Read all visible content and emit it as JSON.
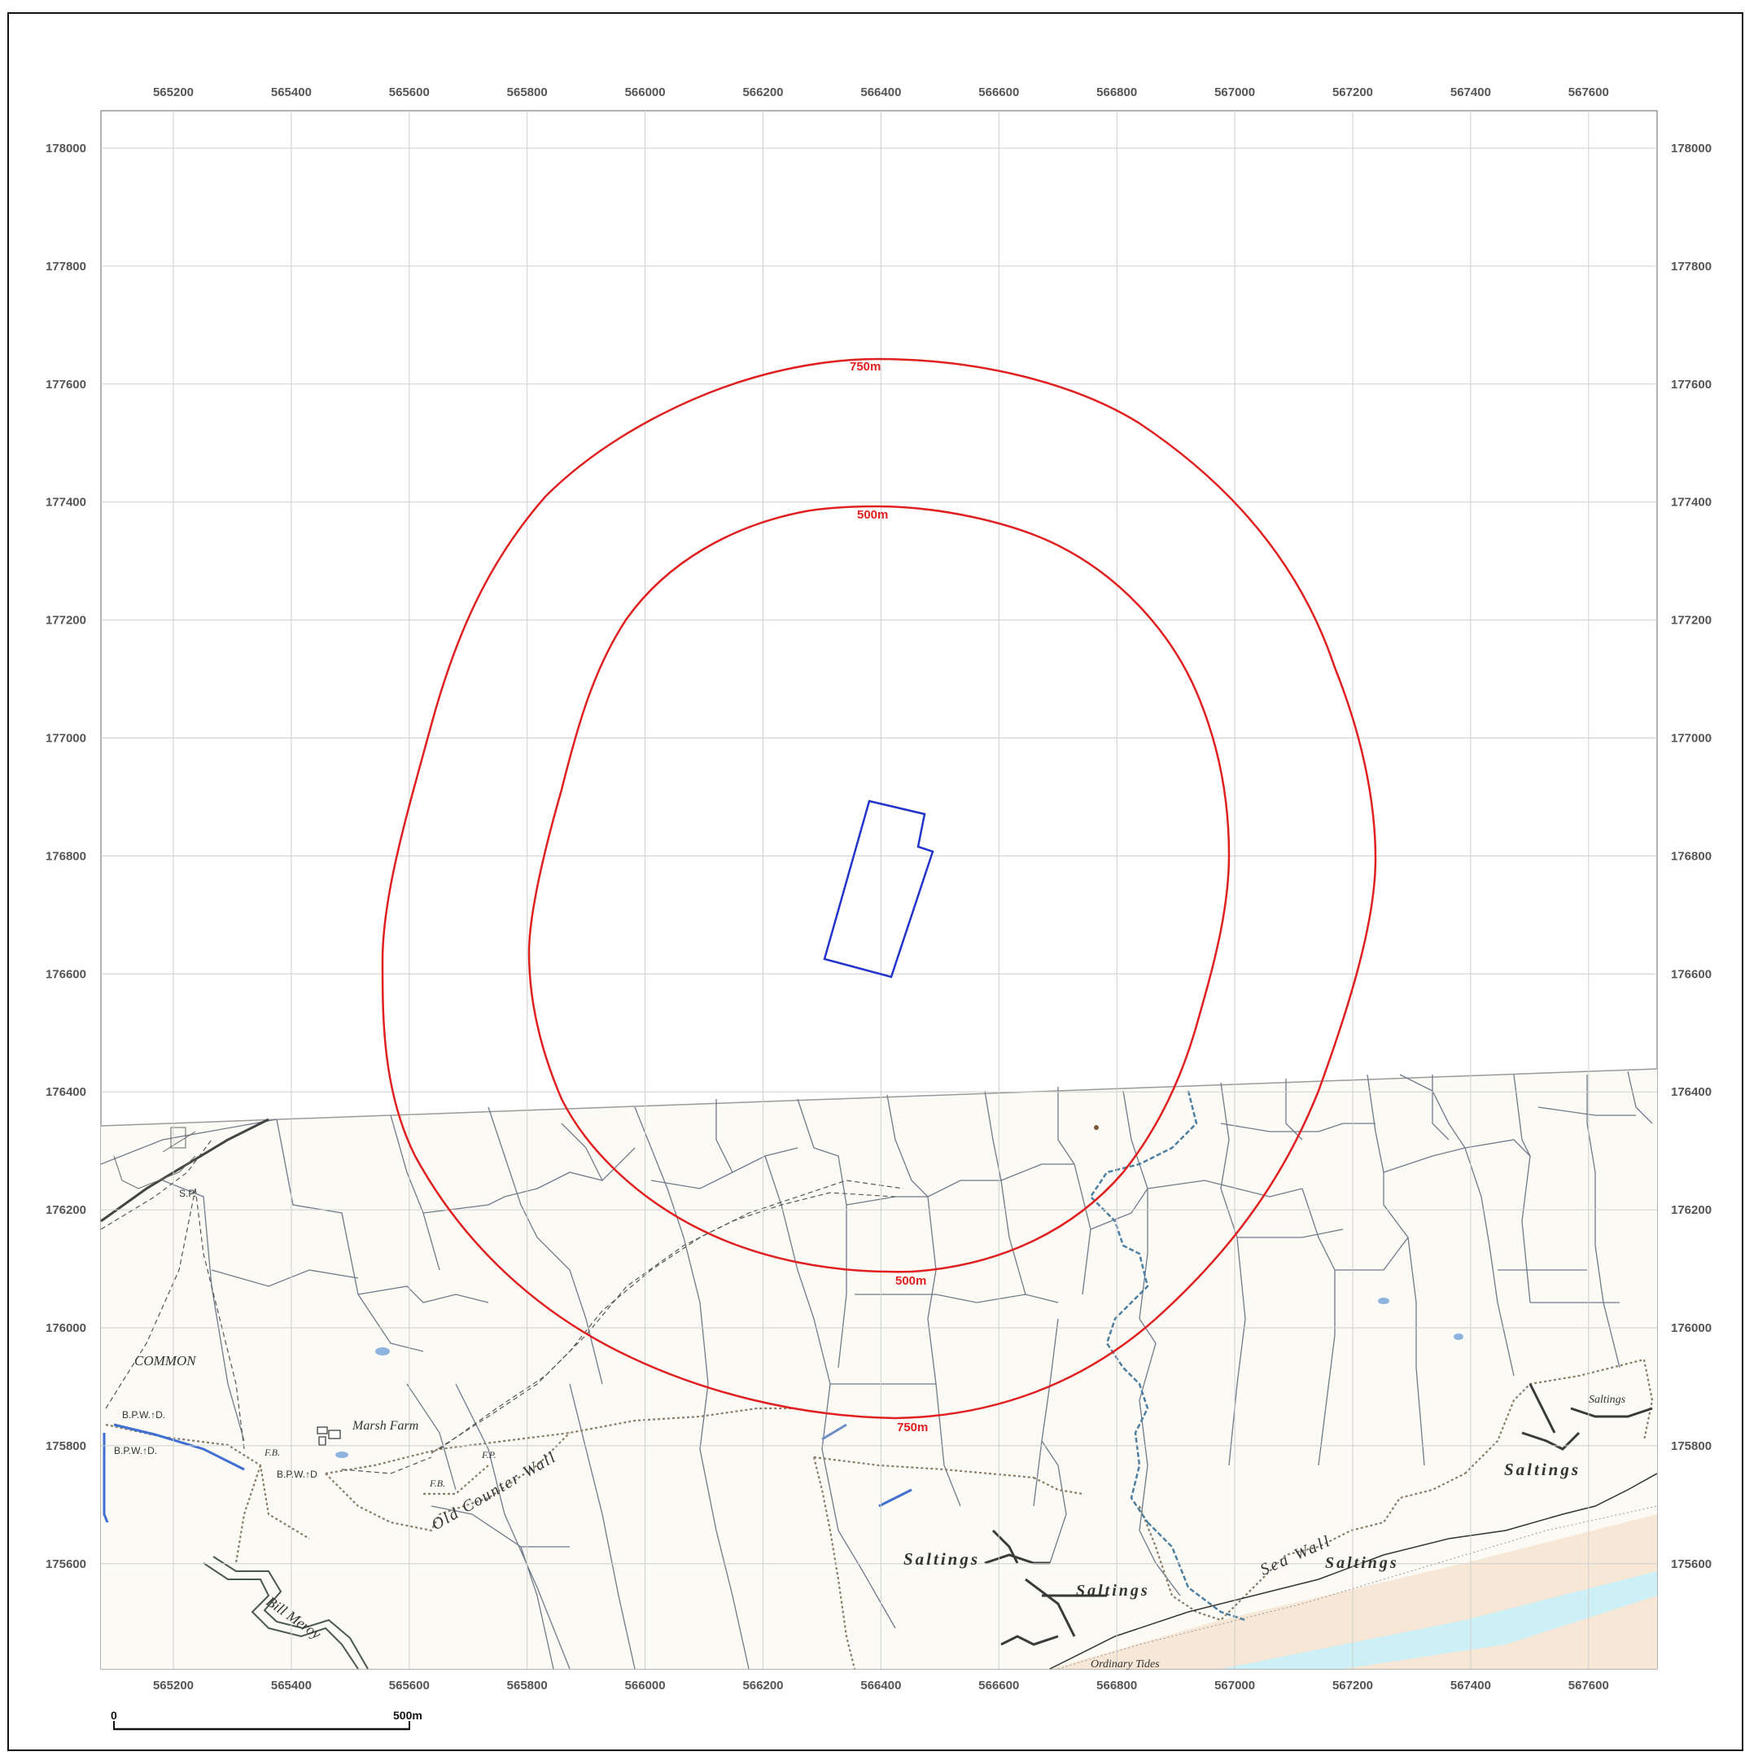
{
  "map": {
    "x_ticks": [
      "565200",
      "565400",
      "565600",
      "565800",
      "566000",
      "566200",
      "566400",
      "566600",
      "566800",
      "567000",
      "567200",
      "567400",
      "567600"
    ],
    "y_ticks": [
      "178000",
      "177800",
      "177600",
      "177400",
      "177200",
      "177000",
      "176800",
      "176600",
      "176400",
      "176200",
      "176000",
      "175800",
      "175600"
    ],
    "buffers": [
      {
        "label": "750m",
        "color": "#e02020"
      },
      {
        "label": "500m",
        "color": "#e02020"
      }
    ],
    "site_outline_color": "#2233cc",
    "place_labels": {
      "common": "COMMON",
      "marsh_farm": "Marsh Farm",
      "bpwd_1": "B.P.W.↑D.",
      "bpwd_2": "B.P.W.↑D.",
      "bpwd_3": "B.P.W.↑D",
      "fb_1": "F.B.",
      "fb_2": "F.B.",
      "fp": "F.P.",
      "sp": "S.P.",
      "old_counter_wall": "Old Counter Wall",
      "sea_wall": "Sea Wall",
      "saltings_1": "Saltings",
      "saltings_2": "Saltings",
      "saltings_3": "Saltings",
      "saltings_4": "Saltings",
      "saltings_5": "Saltings",
      "tides": "Ordinary Tides",
      "river": "Bill Meroy"
    },
    "scale_bar": {
      "start": "0",
      "end": "500m"
    }
  }
}
